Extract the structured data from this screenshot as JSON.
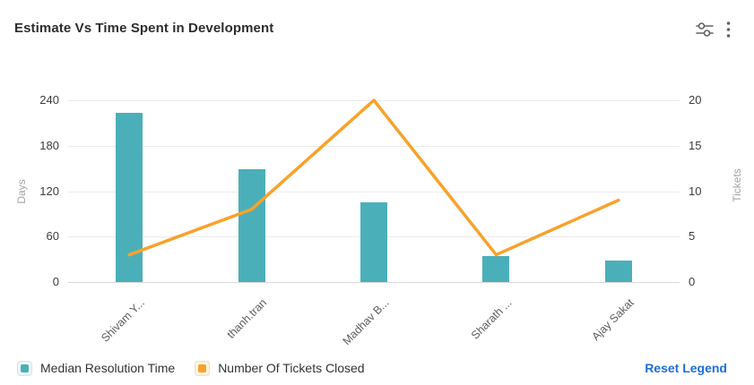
{
  "header": {
    "title": "Estimate Vs Time Spent in Development",
    "icons": [
      {
        "name": "sliders-settings-icon"
      },
      {
        "name": "kebab-menu-icon"
      }
    ]
  },
  "chart_data": {
    "type": "bar+line combo",
    "title": "Estimate Vs Time Spent in Development",
    "categories": [
      "Shivam Y...",
      "thanh.tran",
      "Madhav B...",
      "Sharath ...",
      "Ajay Sakat"
    ],
    "series": [
      {
        "name": "Median Resolution Time",
        "type": "bar",
        "axis": "left",
        "color": "#4BAFB9",
        "values": [
          224,
          149,
          105,
          34,
          28
        ]
      },
      {
        "name": "Number Of Tickets Closed",
        "type": "line",
        "axis": "right",
        "color": "#F8A22B",
        "values": [
          3,
          8,
          20,
          3,
          9
        ]
      }
    ],
    "left_axis": {
      "label": "Days",
      "min": 0,
      "max": 240,
      "ticks": [
        0,
        60,
        120,
        180,
        240
      ]
    },
    "right_axis": {
      "label": "Tickets",
      "min": 0,
      "max": 20,
      "ticks": [
        0,
        5,
        10,
        15,
        20
      ]
    },
    "grid": true,
    "legend_position": "bottom-left",
    "x_label_rotation": 45
  },
  "legend": {
    "items": [
      {
        "label": "Median Resolution Time",
        "color": "#4BAFB9",
        "tint": "#EDF7F8",
        "border": "#CFE5E8"
      },
      {
        "label": "Number Of Tickets Closed",
        "color": "#F8A22B",
        "tint": "#FDF4E3",
        "border": "#F0DDC0"
      }
    ],
    "reset_label": "Reset Legend",
    "reset_color": "#1E6EDC"
  }
}
